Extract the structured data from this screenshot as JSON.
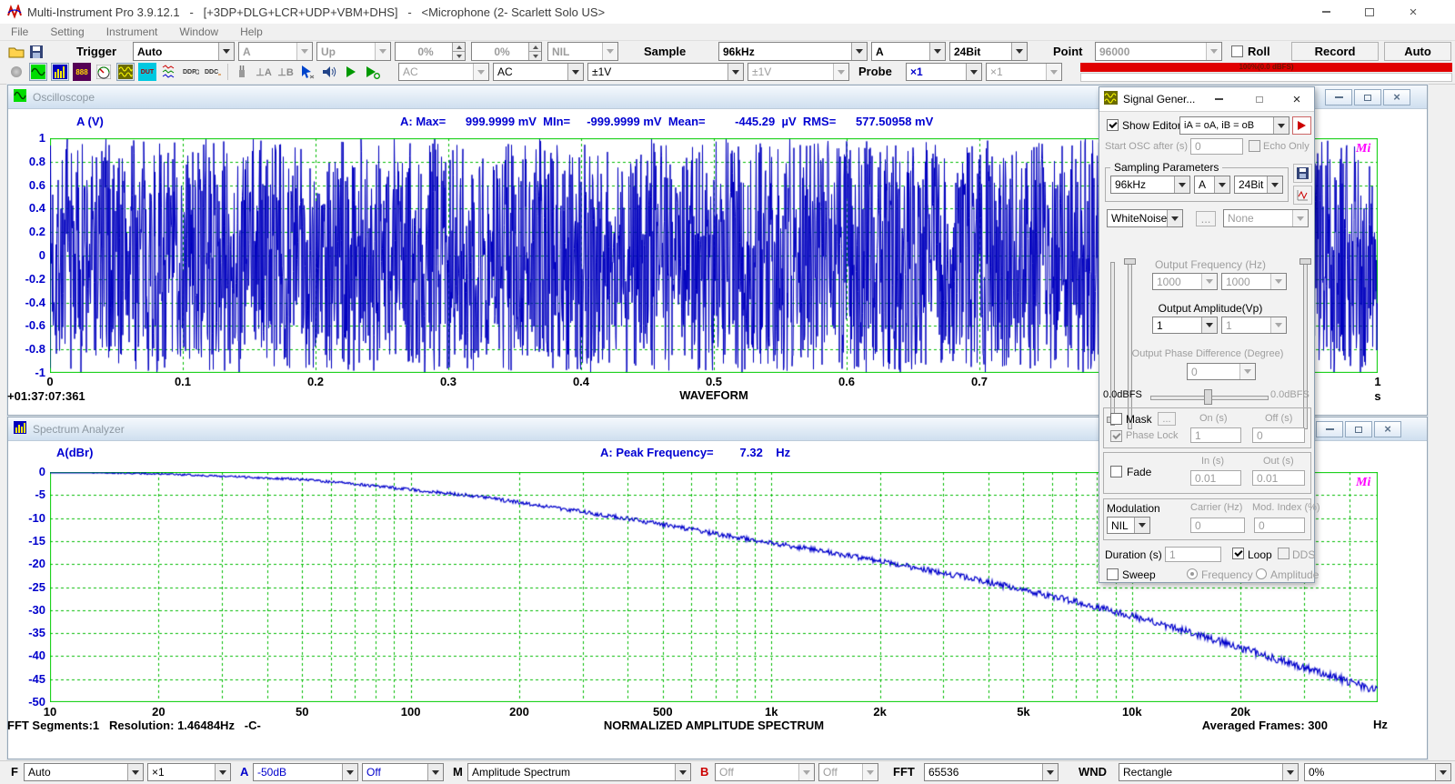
{
  "app": {
    "title": "Multi-Instrument Pro 3.9.12.1   -   [+3DP+DLG+LCR+UDP+VBM+DHS]   -   <Microphone (2- Scarlett Solo US>",
    "menu": [
      "File",
      "Setting",
      "Instrument",
      "Window",
      "Help"
    ]
  },
  "toolbar_top": {
    "trigger_label": "Trigger",
    "trigger_mode": "Auto",
    "trigger_source": "A",
    "trigger_edge": "Up",
    "trigger_level": "0%",
    "trigger_delay": "0%",
    "trigger_frequency": "NIL",
    "sample_label": "Sample",
    "sampling_rate": "96kHz",
    "sampling_channel": "A",
    "sampling_bits": "24Bit",
    "point_label": "Point",
    "point_value": "96000",
    "roll_label": "Roll",
    "record_label": "Record",
    "auto_label": "Auto"
  },
  "toolbar_io": {
    "icon_texts": {
      "multimeter": "888",
      "dut": "DUT",
      "ddp": "DDP",
      "ddc": "DDC",
      "ground_a": "⊥A",
      "ground_b": "⊥B"
    },
    "coupling_a": "AC",
    "coupling_b": "AC",
    "range_a": "±1V",
    "range_b": "±1V",
    "probe_label": "Probe",
    "probe_a": "×1",
    "probe_b": "×1",
    "input_level": "100%(0.0 dBFS)"
  },
  "oscilloscope": {
    "window_title": "Oscilloscope",
    "y_axis_label": "A (V)",
    "stats": "A: Max=      999.9999 mV  MIn=     -999.9999 mV  Mean=         -445.29  µV  RMS=      577.50958 mV",
    "y_ticks": [
      "1",
      "0.8",
      "0.6",
      "0.4",
      "0.2",
      "0",
      "-0.2",
      "-0.4",
      "-0.6",
      "-0.8",
      "-1"
    ],
    "x_ticks": [
      "0",
      "0.1",
      "0.2",
      "0.3",
      "0.4",
      "0.5",
      "0.6",
      "0.7",
      "0.8",
      "0.9",
      "1"
    ],
    "x_unit": "s",
    "timestamp": "+01:37:07:361",
    "bottom_title": "WAVEFORM",
    "logo": "Mi"
  },
  "spectrum": {
    "window_title": "Spectrum Analyzer",
    "y_axis_label": "A(dBr)",
    "stats": "A: Peak Frequency=        7.32    Hz",
    "y_ticks": [
      "0",
      "-5",
      "-10",
      "-15",
      "-20",
      "-25",
      "-30",
      "-35",
      "-40",
      "-45",
      "-50"
    ],
    "x_ticks": [
      {
        "f": 10,
        "label": "10"
      },
      {
        "f": 20,
        "label": "20"
      },
      {
        "f": 50,
        "label": "50"
      },
      {
        "f": 100,
        "label": "100"
      },
      {
        "f": 200,
        "label": "200"
      },
      {
        "f": 500,
        "label": "500"
      },
      {
        "f": 1000,
        "label": "1k"
      },
      {
        "f": 2000,
        "label": "2k"
      },
      {
        "f": 5000,
        "label": "5k"
      },
      {
        "f": 10000,
        "label": "10k"
      },
      {
        "f": 20000,
        "label": "20k"
      }
    ],
    "x_unit": "Hz",
    "fft_info": "FFT Segments:1   Resolution: 1.46484Hz   -C-",
    "bottom_title": "NORMALIZED AMPLITUDE SPECTRUM",
    "averaged_frames": "Averaged Frames: 300",
    "logo": "Mi"
  },
  "signal_generator": {
    "window_title": "Signal Gener...",
    "show_editor_label": "Show Editor",
    "routing": "iA = oA, iB = oB",
    "start_osc_label": "Start OSC after (s)",
    "start_osc_value": "0",
    "echo_only_label": "Echo Only",
    "sampling_group_label": "Sampling Parameters",
    "sampling_rate": "96kHz",
    "sampling_channel": "A",
    "sampling_bits": "24Bit",
    "waveform_type": "WhiteNoise",
    "browse_label": "...",
    "window_type": "None",
    "output_frequency_label": "Output Frequency (Hz)",
    "frequency_a": "1000",
    "frequency_b": "1000",
    "output_amplitude_label": "Output Amplitude(Vp)",
    "amplitude_a": "1",
    "amplitude_b": "1",
    "phase_label": "Output Phase Difference (Degree)",
    "phase_value": "0",
    "level_left": "0.0dBFS",
    "level_right": "0.0dBFS",
    "mask_label": "Mask",
    "mask_browse": "...",
    "on_label": "On (s)",
    "off_label": "Off (s)",
    "phase_lock_label": "Phase Lock",
    "on_value": "1",
    "off_value": "0",
    "fade_label": "Fade",
    "fade_in_label": "In (s)",
    "fade_out_label": "Out (s)",
    "fade_in": "0.01",
    "fade_out": "0.01",
    "modulation_label": "Modulation",
    "carrier_label": "Carrier (Hz)",
    "mod_index_label": "Mod. Index (%)",
    "modulation_type": "NIL",
    "carrier_value": "0",
    "mod_index_value": "0",
    "duration_label": "Duration (s)",
    "duration_value": "1",
    "loop_label": "Loop",
    "dds_label": "DDS",
    "sweep_label": "Sweep",
    "sweep_frequency_label": "Frequency",
    "sweep_amplitude_label": "Amplitude"
  },
  "toolbar_bottom": {
    "f_label": "F",
    "f_axis": "Auto",
    "f_mult": "×1",
    "a_label": "A",
    "a_range": "-50dB",
    "a_ref": "Off",
    "m_label": "M",
    "m_mode": "Amplitude Spectrum",
    "b_label": "B",
    "b_range": "Off",
    "b_ref": "Off",
    "fft_label": "FFT",
    "fft_size": "65536",
    "wnd_label": "WND",
    "wnd_type": "Rectangle",
    "overlap": "0%"
  },
  "chart_data": [
    {
      "type": "line",
      "instrument": "oscilloscope",
      "title": "WAVEFORM",
      "xlabel": "s",
      "ylabel": "A (V)",
      "xlim": [
        0,
        1
      ],
      "ylim": [
        -1,
        1
      ],
      "x_tick_values": [
        0,
        0.1,
        0.2,
        0.3,
        0.4,
        0.5,
        0.6,
        0.7,
        0.8,
        0.9,
        1
      ],
      "y_tick_values": [
        1,
        0.8,
        0.6,
        0.4,
        0.2,
        0,
        -0.2,
        -0.4,
        -0.6,
        -0.8,
        -1
      ],
      "grid": true,
      "series": [
        {
          "name": "A",
          "color": "#0000bf",
          "description": "uniformly distributed white noise, ~96000 samples over 1 s, clipped at ±1 V",
          "stats": {
            "max": "999.9999 mV",
            "min": "-999.9999 mV",
            "mean": "-445.29 µV",
            "rms": "577.50958 mV"
          }
        }
      ]
    },
    {
      "type": "line",
      "instrument": "spectrum-analyzer",
      "title": "NORMALIZED AMPLITUDE SPECTRUM",
      "xlabel": "Hz",
      "ylabel": "A(dBr)",
      "x_scale": "log",
      "xlim": [
        10,
        48000
      ],
      "ylim": [
        -50,
        0
      ],
      "grid": true,
      "peak_frequency_hz": 7.32,
      "fft_segments": 1,
      "resolution_hz": 1.46484,
      "averaged_frames": 300,
      "fft_size": 65536,
      "window_function": "Rectangle",
      "series": [
        {
          "name": "A",
          "color": "#0000cc",
          "points_hz_dbr": [
            [
              10,
              0
            ],
            [
              15,
              -0.2
            ],
            [
              20,
              -0.4
            ],
            [
              30,
              -0.9
            ],
            [
              50,
              -1.6
            ],
            [
              70,
              -2.6
            ],
            [
              100,
              -3.8
            ],
            [
              150,
              -5.2
            ],
            [
              200,
              -6.6
            ],
            [
              300,
              -8.6
            ],
            [
              500,
              -11.4
            ],
            [
              700,
              -13.4
            ],
            [
              1000,
              -15.4
            ],
            [
              1500,
              -17.6
            ],
            [
              2000,
              -19.4
            ],
            [
              3000,
              -21.9
            ],
            [
              5000,
              -25.6
            ],
            [
              7000,
              -28.2
            ],
            [
              10000,
              -31.3
            ],
            [
              15000,
              -35.2
            ],
            [
              20000,
              -38.2
            ],
            [
              30000,
              -42.5
            ],
            [
              40000,
              -45.5
            ],
            [
              48000,
              -47.5
            ]
          ]
        }
      ]
    }
  ]
}
